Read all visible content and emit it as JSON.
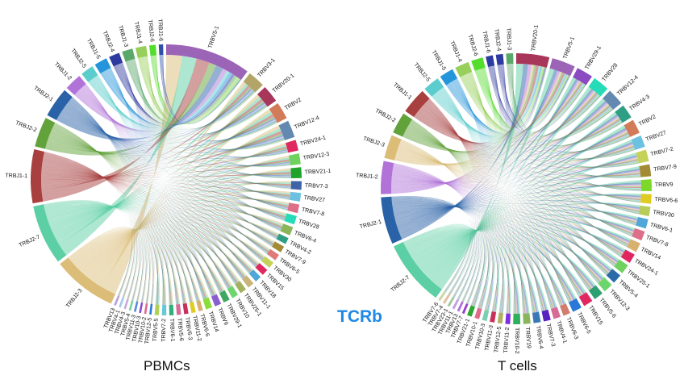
{
  "center_title": "TCRb",
  "diagrams": [
    {
      "caption": "PBMCs",
      "v_segments": [
        {
          "label": "TRBV5-1",
          "value": 40,
          "color": "#9c64b6"
        },
        {
          "label": "TRBV3-1",
          "value": 8,
          "color": "#b3a567"
        },
        {
          "label": "TRBV20-1",
          "value": 8,
          "color": "#a8355a"
        },
        {
          "label": "TRBV2",
          "value": 8,
          "color": "#d27b58"
        },
        {
          "label": "TRBV12-4",
          "value": 8,
          "color": "#6389b1"
        },
        {
          "label": "TRBV24-1",
          "value": 5,
          "color": "#e0275f"
        },
        {
          "label": "TRBV12-3",
          "value": 5,
          "color": "#6fd25e"
        },
        {
          "label": "TRBV21-1",
          "value": 5,
          "color": "#1fa32b"
        },
        {
          "label": "TRBV7-3",
          "value": 4,
          "color": "#3f63a8"
        },
        {
          "label": "TRBV27",
          "value": 4,
          "color": "#6cc0e0"
        },
        {
          "label": "TRBV7-8",
          "value": 4,
          "color": "#de6f88"
        },
        {
          "label": "TRBV28",
          "value": 4,
          "color": "#26dbb8"
        },
        {
          "label": "TRBV6-4",
          "value": 4,
          "color": "#8bb55a"
        },
        {
          "label": "TRBV4-2",
          "value": 3,
          "color": "#2e9f85"
        },
        {
          "label": "TRBV7-9",
          "value": 3,
          "color": "#a38a35"
        },
        {
          "label": "TRBV6-5",
          "value": 3,
          "color": "#de7a7a"
        },
        {
          "label": "TRBV30",
          "value": 3,
          "color": "#c5d25a"
        },
        {
          "label": "TRBV15",
          "value": 3,
          "color": "#e0275f"
        },
        {
          "label": "TRBV18",
          "value": 3,
          "color": "#4fa6d8"
        },
        {
          "label": "TRBV11-1",
          "value": 3,
          "color": "#c9b47a"
        },
        {
          "label": "TRBV25-1",
          "value": 3,
          "color": "#a2b360"
        },
        {
          "label": "TRBV10",
          "value": 3,
          "color": "#6cd66c"
        },
        {
          "label": "TRBV29-1",
          "value": 3,
          "color": "#3fa860"
        },
        {
          "label": "TRBV9",
          "value": 3,
          "color": "#8a5ed0"
        },
        {
          "label": "TRBV14",
          "value": 3,
          "color": "#8cdc3a"
        },
        {
          "label": "TRBV6-6",
          "value": 2,
          "color": "#d8b070"
        },
        {
          "label": "TRBV11-2",
          "value": 2,
          "color": "#e0cc20"
        },
        {
          "label": "TRBV6-3",
          "value": 2,
          "color": "#c8305a"
        },
        {
          "label": "TRBV5-6",
          "value": 2,
          "color": "#d86a98"
        },
        {
          "label": "TRBV6-1",
          "value": 2,
          "color": "#2fb07a"
        },
        {
          "label": "TRBV7-2",
          "value": 2,
          "color": "#66c8d8"
        },
        {
          "label": "TRBV5-5",
          "value": 2,
          "color": "#b0d05a"
        },
        {
          "label": "TRBV12-5",
          "value": 1,
          "color": "#2a78d8"
        },
        {
          "label": "TRBV10-2",
          "value": 1,
          "color": "#e06a8a"
        },
        {
          "label": "TRBV10-3",
          "value": 1,
          "color": "#8a4ad8"
        },
        {
          "label": "TRBV11-3",
          "value": 1,
          "color": "#5a8ad8"
        },
        {
          "label": "TRBV5-4",
          "value": 1,
          "color": "#7ad0a0"
        },
        {
          "label": "TRBV4-3",
          "value": 1,
          "color": "#c8a8e0"
        },
        {
          "label": "TRBV4-1",
          "value": 1,
          "color": "#a0c8e8"
        },
        {
          "label": "TRBV13",
          "value": 1,
          "color": "#b8a0d8"
        }
      ],
      "j_segments": [
        {
          "label": "TRBJ2-3",
          "value": 30,
          "color": "#dcbd78"
        },
        {
          "label": "TRBJ2-7",
          "value": 28,
          "color": "#5ccfa4"
        },
        {
          "label": "TRBJ1-1",
          "value": 25,
          "color": "#a8403f"
        },
        {
          "label": "TRBJ2-2",
          "value": 14,
          "color": "#62a23a"
        },
        {
          "label": "TRBJ2-1",
          "value": 14,
          "color": "#2a62a8"
        },
        {
          "label": "TRBJ1-2",
          "value": 8,
          "color": "#b273d9"
        },
        {
          "label": "TRBJ2-5",
          "value": 6,
          "color": "#5ccdcd"
        },
        {
          "label": "TRBJ1-5",
          "value": 6,
          "color": "#2595db"
        },
        {
          "label": "TRBJ2-4",
          "value": 5,
          "color": "#2d3aa0"
        },
        {
          "label": "TRBJ1-3",
          "value": 5,
          "color": "#5aa86a"
        },
        {
          "label": "TRBJ1-4",
          "value": 5,
          "color": "#98cf5a"
        },
        {
          "label": "TRBJ2-6",
          "value": 3,
          "color": "#55dd2e"
        },
        {
          "label": "TRBJ1-6",
          "value": 2,
          "color": "#2d4fa8"
        }
      ]
    },
    {
      "caption": "T cells",
      "v_segments": [
        {
          "label": "TRBV20-1",
          "value": 14,
          "color": "#a8355a"
        },
        {
          "label": "TRBV5-1",
          "value": 10,
          "color": "#9c64b6"
        },
        {
          "label": "TRBV29-1",
          "value": 7,
          "color": "#8a4ac0"
        },
        {
          "label": "TRBV28",
          "value": 7,
          "color": "#26dbb8"
        },
        {
          "label": "TRBV12-4",
          "value": 7,
          "color": "#6389b1"
        },
        {
          "label": "TRBV4-3",
          "value": 6,
          "color": "#2e9f85"
        },
        {
          "label": "TRBV2",
          "value": 6,
          "color": "#d27b58"
        },
        {
          "label": "TRBV27",
          "value": 5,
          "color": "#6cc0e0"
        },
        {
          "label": "TRBV7-2",
          "value": 5,
          "color": "#c5d25a"
        },
        {
          "label": "TRBV7-9",
          "value": 5,
          "color": "#a38a35"
        },
        {
          "label": "TRBV9",
          "value": 5,
          "color": "#7cd92a"
        },
        {
          "label": "TRBV6-6",
          "value": 4,
          "color": "#e0cc20"
        },
        {
          "label": "TRBV30",
          "value": 4,
          "color": "#b8cc5a"
        },
        {
          "label": "TRBV6-1",
          "value": 4,
          "color": "#4fa6d8"
        },
        {
          "label": "TRBV7-8",
          "value": 4,
          "color": "#de6f88"
        },
        {
          "label": "TRBV14",
          "value": 4,
          "color": "#d8b070"
        },
        {
          "label": "TRBV24-1",
          "value": 4,
          "color": "#e0275f"
        },
        {
          "label": "TRBV25-1",
          "value": 4,
          "color": "#6fd25e"
        },
        {
          "label": "TRBV5-4",
          "value": 4,
          "color": "#2a6aa8"
        },
        {
          "label": "TRBV12-3",
          "value": 4,
          "color": "#6cd66c"
        },
        {
          "label": "TRBV5-6",
          "value": 4,
          "color": "#2e9f70"
        },
        {
          "label": "TRBV15",
          "value": 4,
          "color": "#e0275f"
        },
        {
          "label": "TRBV6-5",
          "value": 4,
          "color": "#2a78d8"
        },
        {
          "label": "TRBV6-3",
          "value": 3,
          "color": "#d27b70"
        },
        {
          "label": "TRBV4-1",
          "value": 3,
          "color": "#d86a98"
        },
        {
          "label": "TRBV7-3",
          "value": 3,
          "color": "#5a22c0"
        },
        {
          "label": "TRBV6-4",
          "value": 3,
          "color": "#3a78b8"
        },
        {
          "label": "TRBV19",
          "value": 3,
          "color": "#8bb55a"
        },
        {
          "label": "TRBV10-2",
          "value": 3,
          "color": "#2fb05a"
        },
        {
          "label": "TRBV11-2",
          "value": 2,
          "color": "#7a30e0"
        },
        {
          "label": "TRBV12-5",
          "value": 2,
          "color": "#b0b060"
        },
        {
          "label": "TRBV11-3",
          "value": 2,
          "color": "#c8305a"
        },
        {
          "label": "TRBV10-3",
          "value": 2,
          "color": "#7ad0b0"
        },
        {
          "label": "TRBV10-1",
          "value": 2,
          "color": "#e06a8a"
        },
        {
          "label": "TRBV21-1",
          "value": 2,
          "color": "#2aa830"
        },
        {
          "label": "TRBV7-7",
          "value": 1,
          "color": "#9a40c8"
        },
        {
          "label": "TRBV13",
          "value": 1,
          "color": "#b070d8"
        },
        {
          "label": "TRBV11-1",
          "value": 1,
          "color": "#c0a0e0"
        },
        {
          "label": "TRBV23-1",
          "value": 1,
          "color": "#a0c8a0"
        },
        {
          "label": "TRBV7-4",
          "value": 1,
          "color": "#e0c0a0"
        },
        {
          "label": "TRBV7-6",
          "value": 1,
          "color": "#c8d8a0"
        }
      ],
      "j_segments": [
        {
          "label": "TRBJ2-7",
          "value": 28,
          "color": "#5ccfa4"
        },
        {
          "label": "TRBJ2-1",
          "value": 20,
          "color": "#2a62a8"
        },
        {
          "label": "TRBJ1-2",
          "value": 14,
          "color": "#b273d9"
        },
        {
          "label": "TRBJ2-3",
          "value": 10,
          "color": "#dcbd78"
        },
        {
          "label": "TRBJ2-2",
          "value": 9,
          "color": "#62a23a"
        },
        {
          "label": "TRBJ1-1",
          "value": 11,
          "color": "#a8403f"
        },
        {
          "label": "TRBJ2-5",
          "value": 7,
          "color": "#5ccdcd"
        },
        {
          "label": "TRBJ1-5",
          "value": 6,
          "color": "#2595db"
        },
        {
          "label": "TRBJ1-4",
          "value": 6,
          "color": "#98cf5a"
        },
        {
          "label": "TRBJ2-6",
          "value": 5,
          "color": "#55dd2e"
        },
        {
          "label": "TRBJ1-6",
          "value": 3,
          "color": "#2d3aa0"
        },
        {
          "label": "TRBJ2-4",
          "value": 3,
          "color": "#2d3aa0"
        },
        {
          "label": "TRBJ1-3",
          "value": 3,
          "color": "#5aa86a"
        }
      ]
    }
  ]
}
